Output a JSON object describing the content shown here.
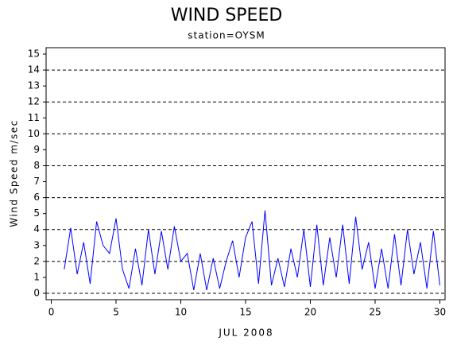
{
  "chart_data": {
    "type": "line",
    "title": "WIND SPEED",
    "subtitle": "station=OYSM",
    "x_label": "JUL 2008",
    "y_label": "Wind Speed m/sec",
    "x": [
      1,
      1.5,
      2,
      2.5,
      3,
      3.5,
      4,
      4.5,
      5,
      5.5,
      6,
      6.5,
      7,
      7.5,
      8,
      8.5,
      9,
      9.5,
      10,
      10.5,
      11,
      11.5,
      12,
      12.5,
      13,
      13.5,
      14,
      14.5,
      15,
      15.5,
      16,
      16.5,
      17,
      17.5,
      18,
      18.5,
      19,
      19.5,
      20,
      20.5,
      21,
      21.5,
      22,
      22.5,
      23,
      23.5,
      24,
      24.5,
      25,
      25.5,
      26,
      26.5,
      27,
      27.5,
      28,
      28.5,
      29,
      29.5,
      30
    ],
    "series": [
      {
        "name": "Wind Speed",
        "color": "#0000ff",
        "values": [
          1.5,
          4.1,
          1.2,
          3.2,
          0.6,
          4.5,
          3.0,
          2.5,
          4.7,
          1.5,
          0.3,
          2.8,
          0.5,
          4.0,
          1.2,
          3.9,
          1.5,
          4.2,
          2.0,
          2.5,
          0.2,
          2.5,
          0.2,
          2.2,
          0.3,
          2.0,
          3.3,
          1.0,
          3.5,
          4.5,
          0.6,
          5.2,
          0.5,
          2.2,
          0.4,
          2.8,
          1.0,
          4.0,
          0.4,
          4.3,
          0.5,
          3.5,
          1.0,
          4.3,
          0.6,
          4.8,
          1.5,
          3.2,
          0.3,
          2.8,
          0.3,
          3.7,
          0.5,
          4.0,
          1.2,
          3.2,
          0.3,
          3.9,
          0.5
        ]
      }
    ],
    "xlim": [
      -0.4,
      30.4
    ],
    "ylim": [
      -0.4,
      15.4
    ],
    "xticks": [
      0,
      5,
      10,
      15,
      20,
      25,
      30
    ],
    "yticks": [
      0,
      1,
      2,
      3,
      4,
      5,
      6,
      7,
      8,
      9,
      10,
      11,
      12,
      13,
      14,
      15
    ],
    "grid": true
  }
}
